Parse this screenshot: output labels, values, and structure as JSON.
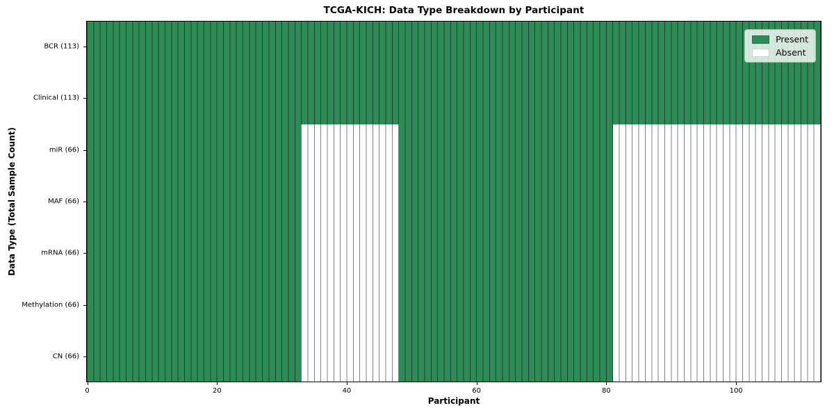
{
  "title": "TCGA-KICH: Data Type Breakdown by Participant",
  "axes": {
    "xlabel": "Participant",
    "ylabel": "Data Type (Total Sample Count)"
  },
  "legend": {
    "items": [
      {
        "label": "Present",
        "color": "#2e8b57"
      },
      {
        "label": "Absent",
        "color": "#ffffff"
      }
    ]
  },
  "chart_data": {
    "type": "heatmap",
    "title": "TCGA-KICH: Data Type Breakdown by Participant",
    "xlabel": "Participant",
    "ylabel": "Data Type (Total Sample Count)",
    "x_range": [
      0,
      113
    ],
    "x_ticks": [
      0,
      20,
      40,
      60,
      80,
      100
    ],
    "n_participants": 113,
    "grid": "per-participant vertical separators and per-row horizontal separators",
    "legend_position": "upper right",
    "legend_entries": [
      "Present",
      "Absent"
    ],
    "colors": {
      "present": "#2e8b57",
      "absent": "#ffffff"
    },
    "rows": [
      {
        "label": "BCR (113)",
        "data_type": "BCR",
        "total_samples": 113,
        "present_ranges": [
          [
            0,
            113
          ]
        ]
      },
      {
        "label": "Clinical (113)",
        "data_type": "Clinical",
        "total_samples": 113,
        "present_ranges": [
          [
            0,
            113
          ]
        ]
      },
      {
        "label": "miR (66)",
        "data_type": "miR",
        "total_samples": 66,
        "present_ranges": [
          [
            0,
            33
          ],
          [
            48,
            81
          ]
        ]
      },
      {
        "label": "MAF (66)",
        "data_type": "MAF",
        "total_samples": 66,
        "present_ranges": [
          [
            0,
            33
          ],
          [
            48,
            81
          ]
        ]
      },
      {
        "label": "mRNA (66)",
        "data_type": "mRNA",
        "total_samples": 66,
        "present_ranges": [
          [
            0,
            33
          ],
          [
            48,
            81
          ]
        ]
      },
      {
        "label": "Methylation (66)",
        "data_type": "Methylation",
        "total_samples": 66,
        "present_ranges": [
          [
            0,
            33
          ],
          [
            48,
            81
          ]
        ]
      },
      {
        "label": "CN (66)",
        "data_type": "CN",
        "total_samples": 66,
        "present_ranges": [
          [
            0,
            33
          ],
          [
            48,
            81
          ]
        ]
      }
    ]
  }
}
